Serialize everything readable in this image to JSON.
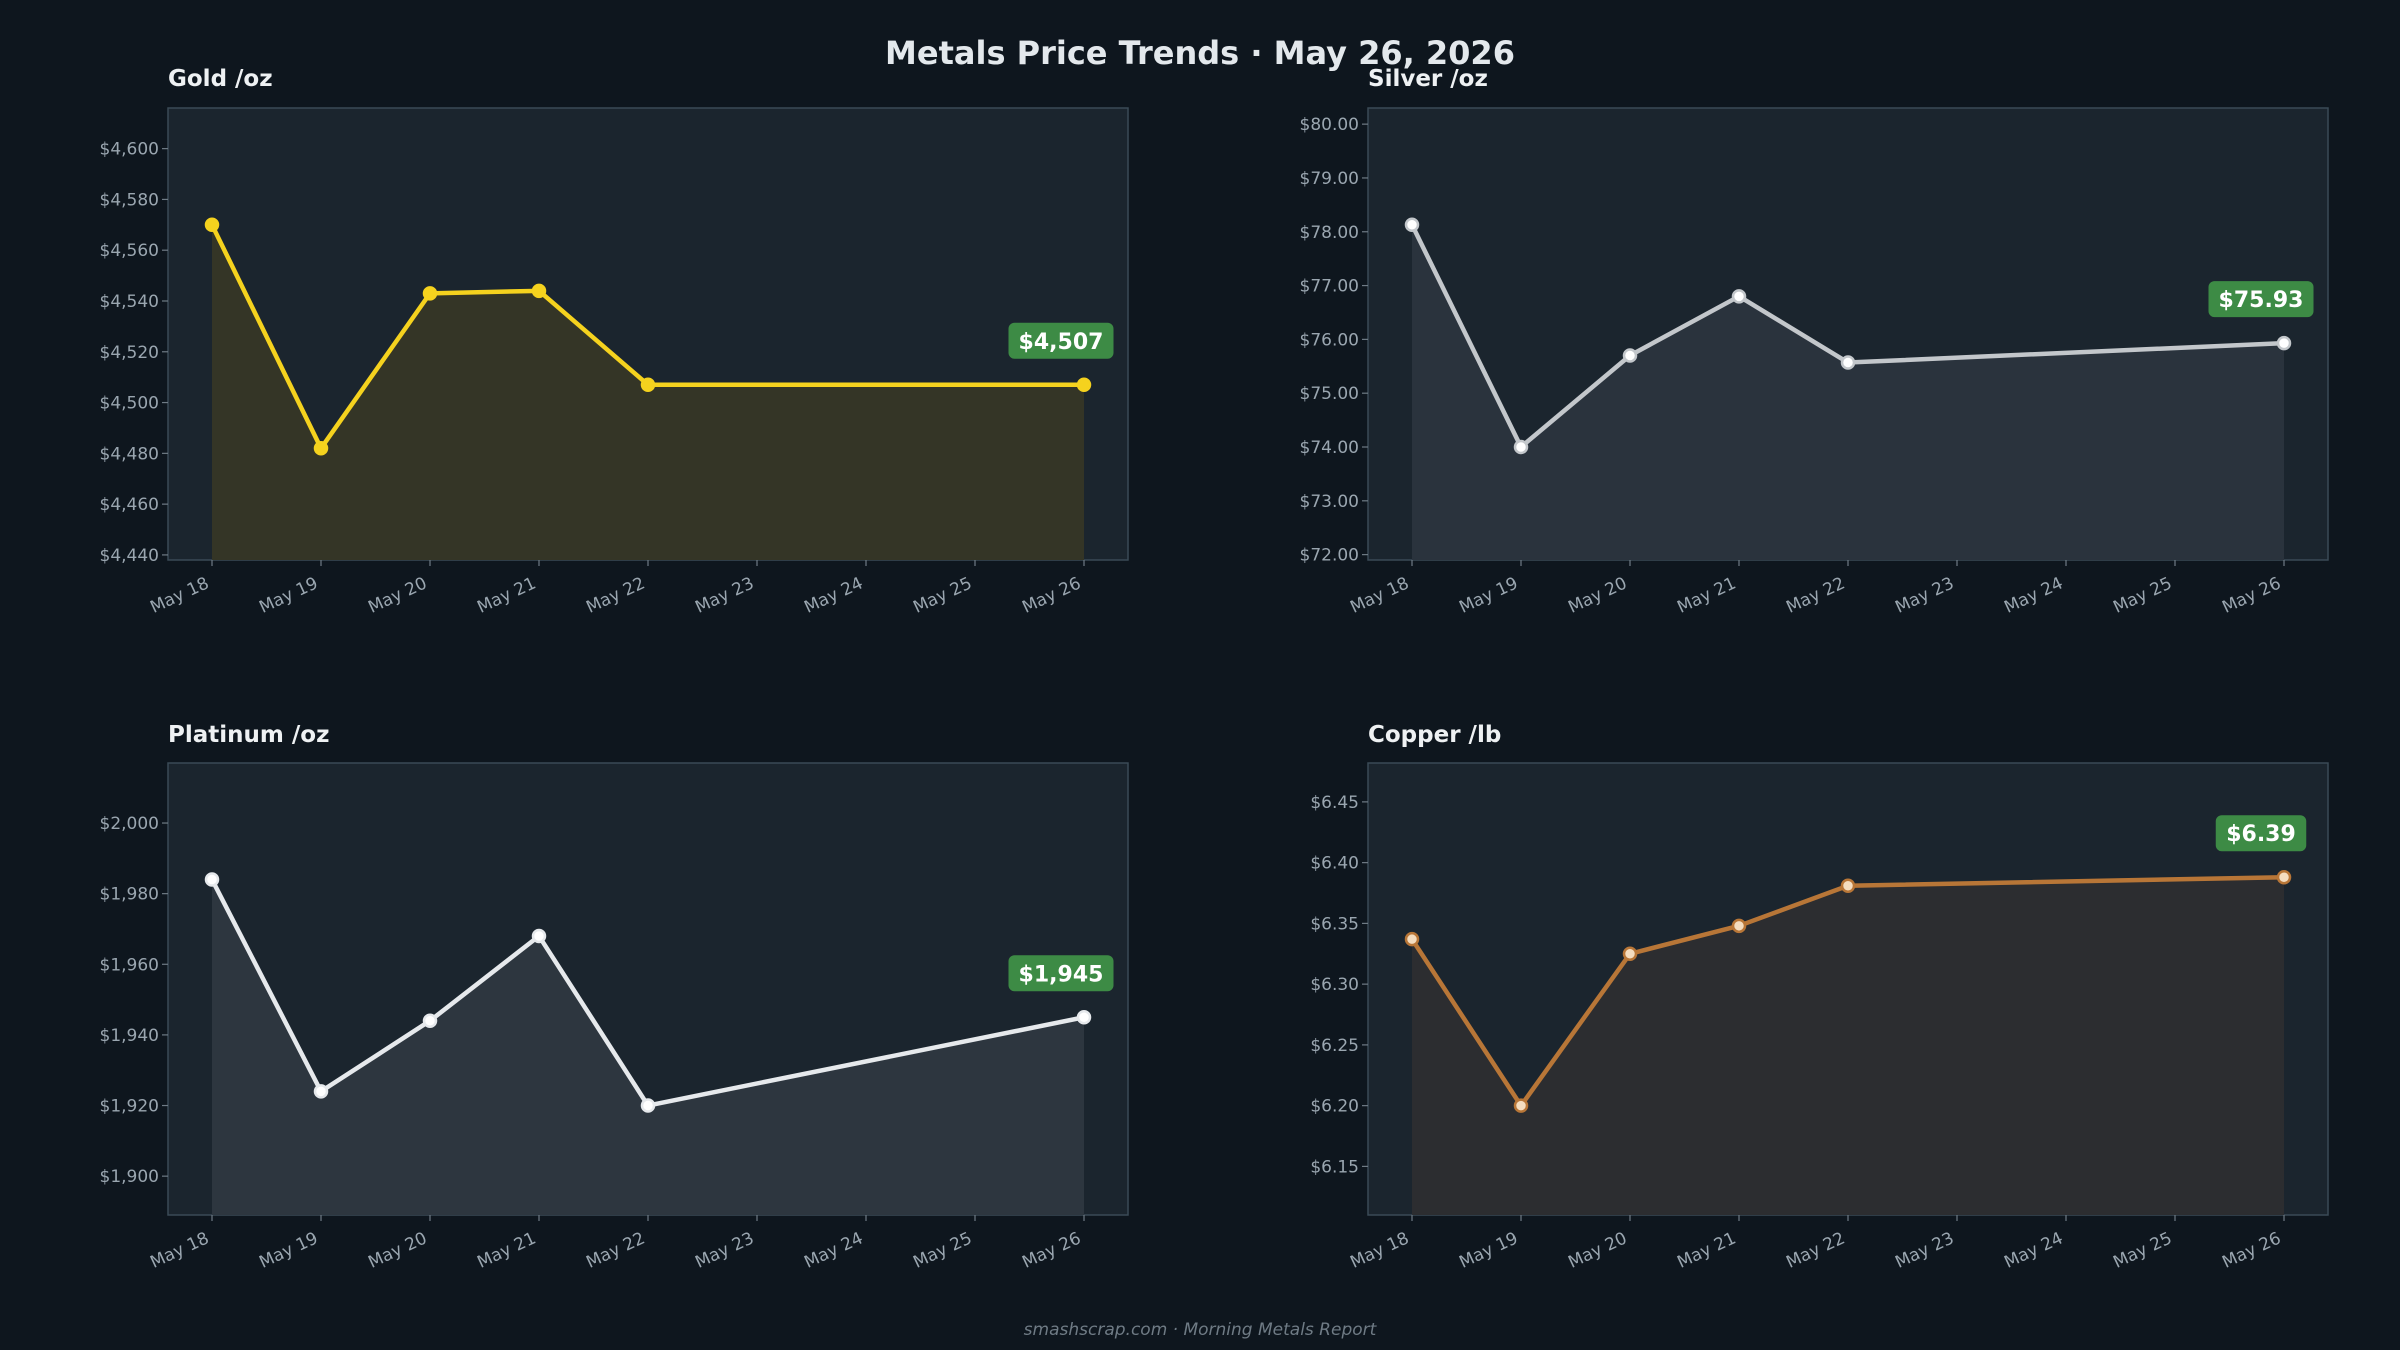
{
  "title": "Metals Price Trends  ·  May 26, 2026",
  "footer": "smashscrap.com  ·  Morning Metals Report",
  "chart_data": [
    {
      "type": "line",
      "title": "Gold  /oz",
      "categories": [
        "May 18",
        "May 19",
        "May 20",
        "May 21",
        "May 22",
        "May 23",
        "May 24",
        "May 25",
        "May 26"
      ],
      "points": [
        {
          "x": "May 18",
          "y": 4570
        },
        {
          "x": "May 19",
          "y": 4482
        },
        {
          "x": "May 20",
          "y": 4543
        },
        {
          "x": "May 21",
          "y": 4544
        },
        {
          "x": "May 22",
          "y": 4507
        },
        {
          "x": "May 26",
          "y": 4507
        }
      ],
      "ylim": [
        4438,
        4616
      ],
      "yticks": [
        4440,
        4460,
        4480,
        4500,
        4520,
        4540,
        4560,
        4580,
        4600
      ],
      "ytick_labels": [
        "$4,440",
        "$4,460",
        "$4,480",
        "$4,500",
        "$4,520",
        "$4,540",
        "$4,560",
        "$4,580",
        "$4,600"
      ],
      "latest_label": "$4,507",
      "color": "#f5d21e",
      "fill_color": "#343526",
      "marker_fill": "#f5d21e"
    },
    {
      "type": "line",
      "title": "Silver  /oz",
      "categories": [
        "May 18",
        "May 19",
        "May 20",
        "May 21",
        "May 22",
        "May 23",
        "May 24",
        "May 25",
        "May 26"
      ],
      "points": [
        {
          "x": "May 18",
          "y": 78.13
        },
        {
          "x": "May 19",
          "y": 74.0
        },
        {
          "x": "May 20",
          "y": 75.7
        },
        {
          "x": "May 21",
          "y": 76.8
        },
        {
          "x": "May 22",
          "y": 75.57
        },
        {
          "x": "May 26",
          "y": 75.93
        }
      ],
      "ylim": [
        71.9,
        80.3
      ],
      "yticks": [
        72,
        73,
        74,
        75,
        76,
        77,
        78,
        79,
        80
      ],
      "ytick_labels": [
        "$72.00",
        "$73.00",
        "$74.00",
        "$75.00",
        "$76.00",
        "$77.00",
        "$78.00",
        "$79.00",
        "$80.00"
      ],
      "latest_label": "$75.93",
      "color": "#c3c7cb",
      "fill_color": "#2a333d",
      "marker_fill": "#ffffff"
    },
    {
      "type": "line",
      "title": "Platinum  /oz",
      "categories": [
        "May 18",
        "May 19",
        "May 20",
        "May 21",
        "May 22",
        "May 23",
        "May 24",
        "May 25",
        "May 26"
      ],
      "points": [
        {
          "x": "May 18",
          "y": 1984
        },
        {
          "x": "May 19",
          "y": 1924
        },
        {
          "x": "May 20",
          "y": 1944
        },
        {
          "x": "May 21",
          "y": 1968
        },
        {
          "x": "May 22",
          "y": 1920
        },
        {
          "x": "May 26",
          "y": 1945
        }
      ],
      "ylim": [
        1889,
        2017
      ],
      "yticks": [
        1900,
        1920,
        1940,
        1960,
        1980,
        2000
      ],
      "ytick_labels": [
        "$1,900",
        "$1,920",
        "$1,940",
        "$1,960",
        "$1,980",
        "$2,000"
      ],
      "latest_label": "$1,945",
      "color": "#e6e9ec",
      "fill_color": "#2d363f",
      "marker_fill": "#ffffff"
    },
    {
      "type": "line",
      "title": "Copper  /lb",
      "categories": [
        "May 18",
        "May 19",
        "May 20",
        "May 21",
        "May 22",
        "May 23",
        "May 24",
        "May 25",
        "May 26"
      ],
      "points": [
        {
          "x": "May 18",
          "y": 6.337
        },
        {
          "x": "May 19",
          "y": 6.2
        },
        {
          "x": "May 20",
          "y": 6.325
        },
        {
          "x": "May 21",
          "y": 6.348
        },
        {
          "x": "May 22",
          "y": 6.381
        },
        {
          "x": "May 26",
          "y": 6.388
        }
      ],
      "ylim": [
        6.11,
        6.482
      ],
      "yticks": [
        6.15,
        6.2,
        6.25,
        6.3,
        6.35,
        6.4,
        6.45
      ],
      "ytick_labels": [
        "$6.15",
        "$6.20",
        "$6.25",
        "$6.30",
        "$6.35",
        "$6.40",
        "$6.45"
      ],
      "latest_label": "$6.39",
      "color": "#b87637",
      "fill_color": "#2c2d30",
      "marker_fill": "#f4ddc0"
    }
  ]
}
